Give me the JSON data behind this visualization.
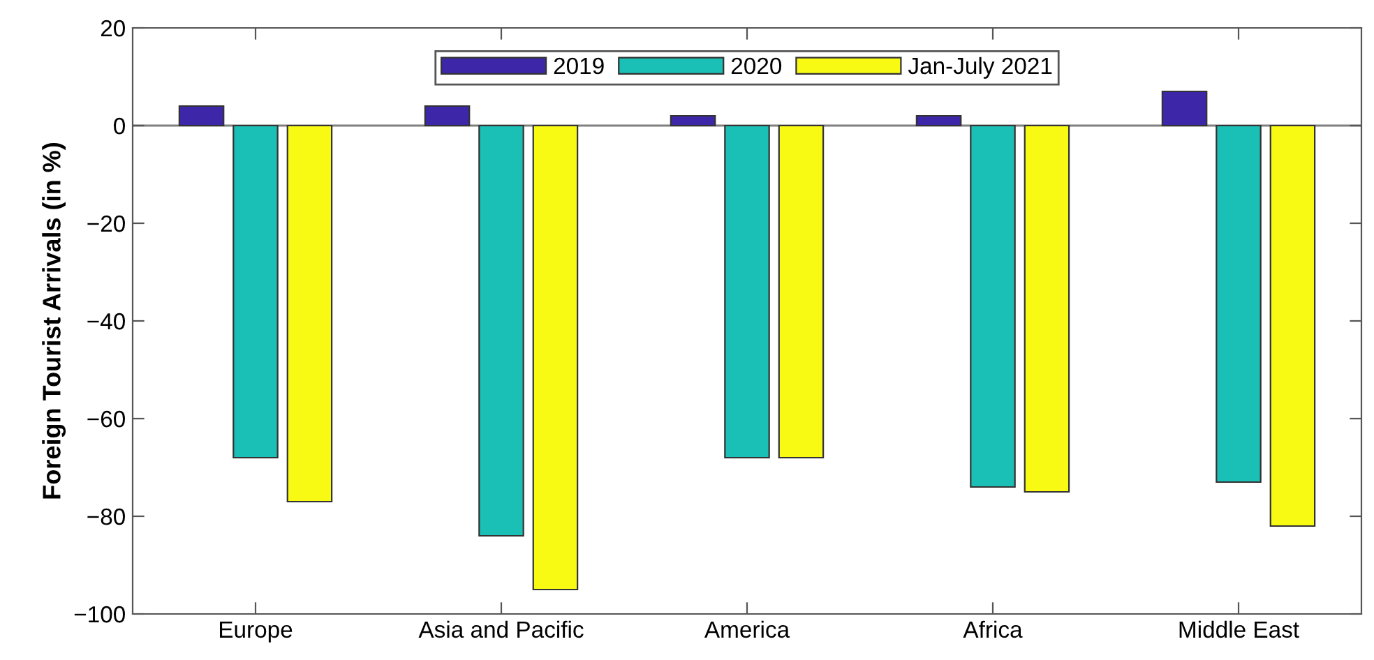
{
  "chart_data": {
    "type": "bar",
    "ylabel": "Foreign Tourist Arrivals (in %)",
    "categories": [
      "Europe",
      "Asia and Pacific",
      "America",
      "Africa",
      "Middle East"
    ],
    "series": [
      {
        "name": "2019",
        "color": "#3e26a8",
        "values": [
          4,
          4,
          2,
          2,
          7
        ]
      },
      {
        "name": "2020",
        "color": "#1abfb5",
        "values": [
          -68,
          -84,
          -68,
          -74,
          -73
        ]
      },
      {
        "name": "Jan-July 2021",
        "color": "#f9fa14",
        "values": [
          -77,
          -95,
          -68,
          -75,
          -82
        ]
      }
    ],
    "ylim": [
      -100,
      20
    ],
    "yticks": [
      -100,
      -80,
      -60,
      -40,
      -20,
      0,
      20
    ],
    "ref_lines": [
      {
        "axis": "y",
        "value": 0,
        "color": "#808080"
      }
    ],
    "grid": false,
    "legend": "top"
  }
}
